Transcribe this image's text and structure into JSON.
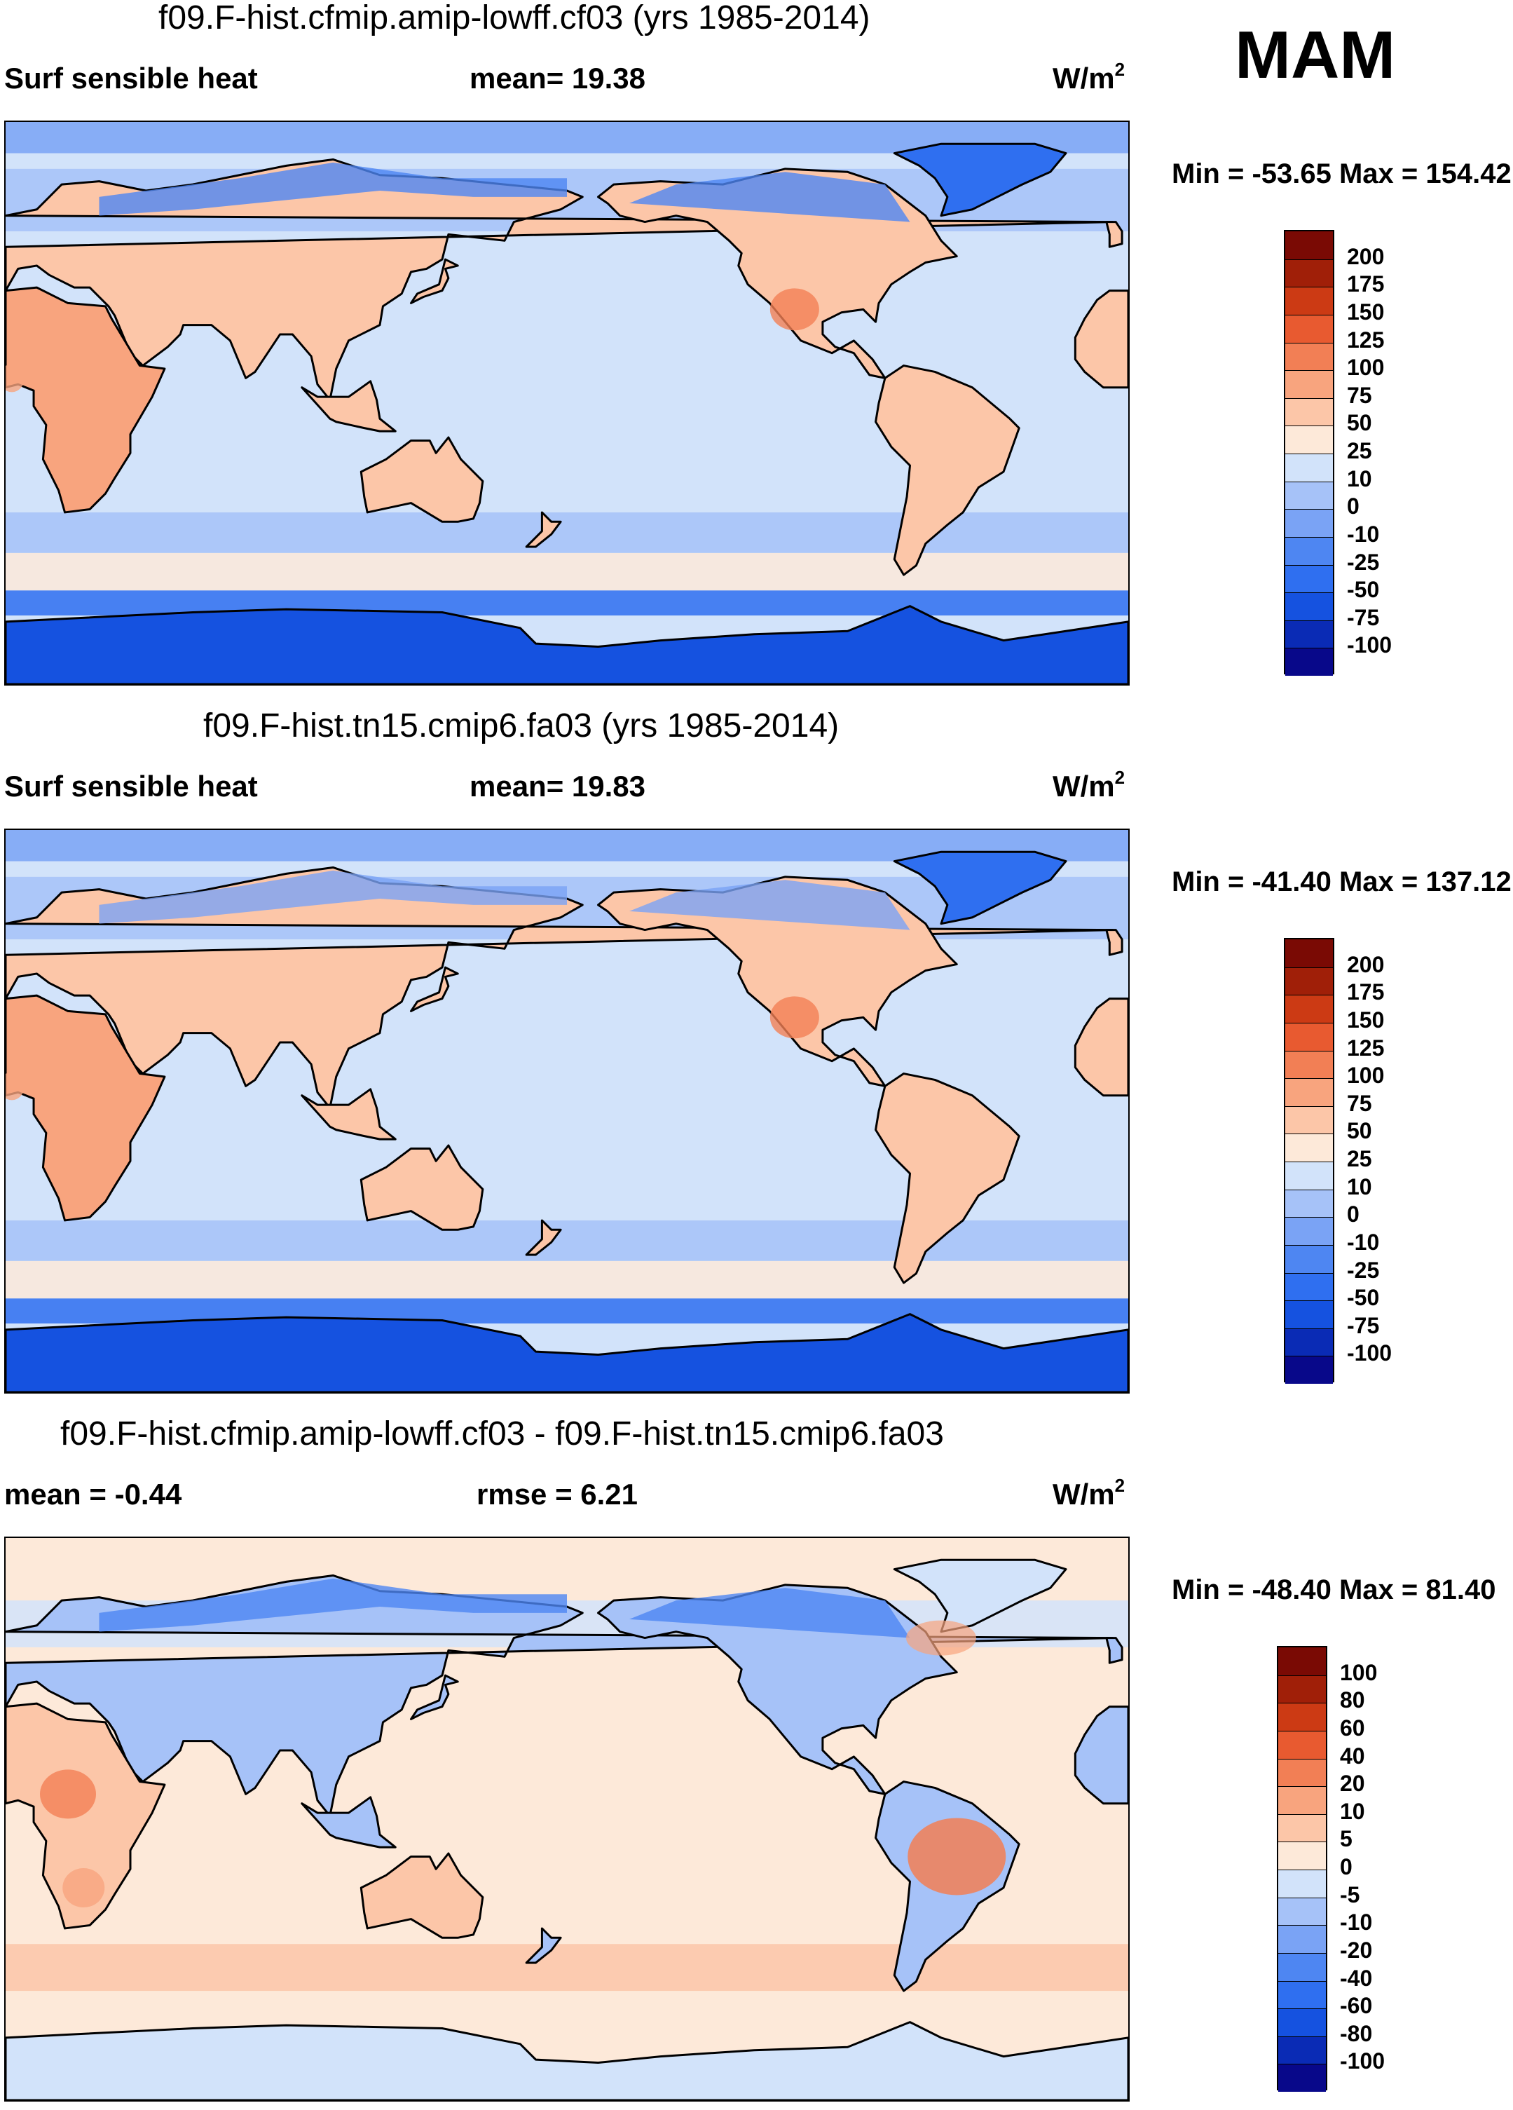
{
  "season": "MAM",
  "panels": [
    {
      "title": "f09.F-hist.cfmip.amip-lowff.cf03 (yrs 1985-2014)",
      "left_label": "Surf sensible heat",
      "center_label": "mean=  19.38",
      "units_base": "W/m",
      "units_exp": "2",
      "minmax": "Min = -53.65 Max = 154.42"
    },
    {
      "title": "f09.F-hist.tn15.cmip6.fa03 (yrs 1985-2014)",
      "left_label": "Surf sensible heat",
      "center_label": "mean=  19.83",
      "units_base": "W/m",
      "units_exp": "2",
      "minmax": "Min = -41.40 Max = 137.12"
    },
    {
      "title": "f09.F-hist.cfmip.amip-lowff.cf03 - f09.F-hist.tn15.cmip6.fa03",
      "left_label": "mean =  -0.44",
      "center_label": "rmse =    6.21",
      "units_base": "W/m",
      "units_exp": "2",
      "minmax": "Min = -48.40 Max =  81.40"
    }
  ],
  "chart_data": [
    {
      "type": "heatmap",
      "title": "f09.F-hist.cfmip.amip-lowff.cf03 (yrs 1985-2014)",
      "variable": "Surf sensible heat",
      "mean": 19.38,
      "min": -53.65,
      "max": 154.42,
      "units": "W/m2",
      "contour_levels": [
        -100,
        -75,
        -50,
        -25,
        -10,
        0,
        10,
        25,
        50,
        75,
        100,
        125,
        150,
        175,
        200
      ],
      "colors": [
        "#08088a",
        "#0a2bb5",
        "#1552e0",
        "#2f6ff0",
        "#4e86f2",
        "#7aa3f5",
        "#a6c2f8",
        "#d2e3fa",
        "#fde9d9",
        "#fcc6a8",
        "#f8a47e",
        "#f27f55",
        "#e85a30",
        "#cc3a14",
        "#a01f08",
        "#7a0a04"
      ]
    },
    {
      "type": "heatmap",
      "title": "f09.F-hist.tn15.cmip6.fa03 (yrs 1985-2014)",
      "variable": "Surf sensible heat",
      "mean": 19.83,
      "min": -41.4,
      "max": 137.12,
      "units": "W/m2",
      "contour_levels": [
        -100,
        -75,
        -50,
        -25,
        -10,
        0,
        10,
        25,
        50,
        75,
        100,
        125,
        150,
        175,
        200
      ],
      "colors": [
        "#08088a",
        "#0a2bb5",
        "#1552e0",
        "#2f6ff0",
        "#4e86f2",
        "#7aa3f5",
        "#a6c2f8",
        "#d2e3fa",
        "#fde9d9",
        "#fcc6a8",
        "#f8a47e",
        "#f27f55",
        "#e85a30",
        "#cc3a14",
        "#a01f08",
        "#7a0a04"
      ]
    },
    {
      "type": "heatmap",
      "title": "f09.F-hist.cfmip.amip-lowff.cf03 - f09.F-hist.tn15.cmip6.fa03",
      "mean": -0.44,
      "rmse": 6.21,
      "min": -48.4,
      "max": 81.4,
      "units": "W/m2",
      "contour_levels": [
        -100,
        -80,
        -60,
        -40,
        -20,
        -10,
        -5,
        0,
        5,
        10,
        20,
        40,
        60,
        80,
        100
      ],
      "colors": [
        "#08088a",
        "#0a2bb5",
        "#1552e0",
        "#2f6ff0",
        "#4e86f2",
        "#7aa3f5",
        "#a6c2f8",
        "#d2e3fa",
        "#fde9d9",
        "#fcc6a8",
        "#f8a47e",
        "#f27f55",
        "#e85a30",
        "#cc3a14",
        "#a01f08",
        "#7a0a04"
      ]
    }
  ]
}
